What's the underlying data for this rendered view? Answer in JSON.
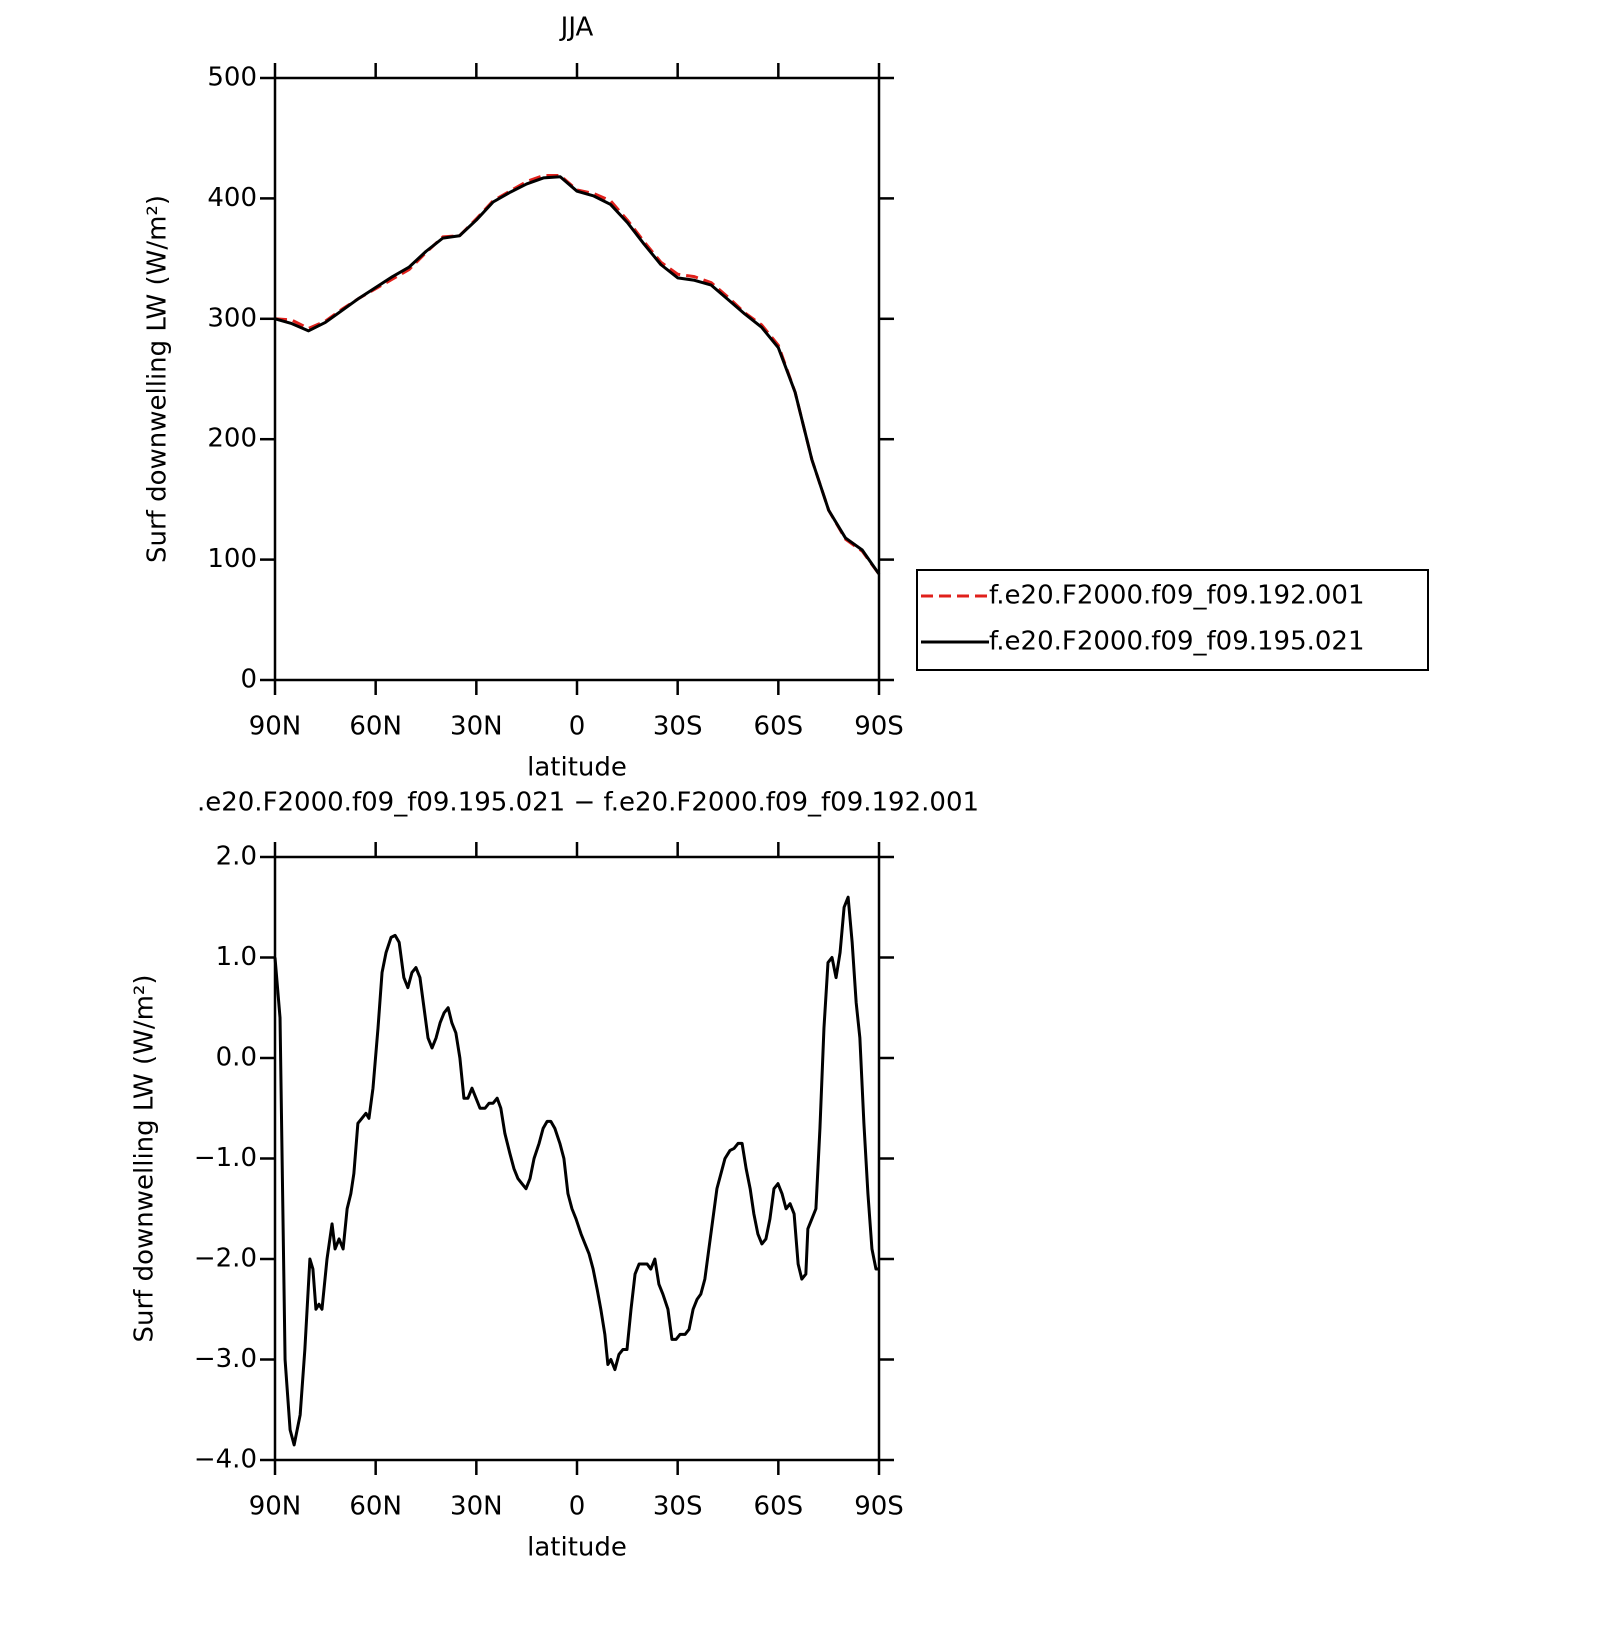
{
  "chart_data": [
    {
      "type": "line",
      "title": "JJA",
      "ylabel": "Surf downwelling LW (W/m²)",
      "xlabel": "latitude",
      "xlim": [
        90,
        -90
      ],
      "ylim": [
        0,
        500
      ],
      "xticks": [
        {
          "value": 90,
          "label": "90N"
        },
        {
          "value": 60,
          "label": "60N"
        },
        {
          "value": 30,
          "label": "30N"
        },
        0,
        {
          "value": -30,
          "label": "30S"
        },
        {
          "value": -60,
          "label": "60S"
        },
        {
          "value": -90,
          "label": "90S"
        }
      ],
      "yticks": [
        0,
        100,
        200,
        300,
        400,
        500
      ],
      "legend": "right",
      "x": [
        90,
        85,
        80,
        75,
        70,
        65,
        60,
        55,
        50,
        45,
        40,
        35,
        30,
        25,
        20,
        15,
        10,
        5,
        0,
        -5,
        -10,
        -15,
        -20,
        -25,
        -30,
        -35,
        -40,
        -45,
        -50,
        -55,
        -60,
        -65,
        -70,
        -75,
        -80,
        -85,
        -90
      ],
      "series": [
        {
          "name": "f.e20.F2000.f09_f09.192.001",
          "color": "#e0201b",
          "dash": true,
          "values": [
            300,
            299,
            292,
            298,
            308,
            317,
            325,
            333,
            341,
            355,
            368,
            369,
            383,
            398,
            406,
            414,
            419,
            419,
            407,
            404,
            398,
            382,
            364,
            347,
            337,
            335,
            330,
            318,
            305,
            295,
            278,
            239,
            183,
            141,
            117,
            107,
            88
          ]
        },
        {
          "name": "f.e20.F2000.f09_f09.195.021",
          "color": "#000000",
          "dash": false,
          "values": [
            300,
            296,
            290,
            297,
            307,
            317,
            326,
            335,
            343,
            356,
            367,
            369,
            382,
            397,
            405,
            412,
            417,
            418,
            406,
            402,
            395,
            380,
            362,
            345,
            334,
            332,
            328,
            316,
            304,
            293,
            276,
            239,
            183,
            141,
            118,
            108,
            88
          ]
        }
      ]
    },
    {
      "type": "line",
      "title": ".e20.F2000.f09_f09.195.021 − f.e20.F2000.f09_f09.192.001",
      "ylabel": "Surf downwelling LW (W/m²)",
      "xlabel": "latitude",
      "xlim": [
        90,
        -90
      ],
      "ylim": [
        -4,
        2
      ],
      "xticks": [
        {
          "value": 90,
          "label": "90N"
        },
        {
          "value": 60,
          "label": "60N"
        },
        {
          "value": 30,
          "label": "30N"
        },
        0,
        {
          "value": -30,
          "label": "30S"
        },
        {
          "value": -60,
          "label": "60S"
        },
        {
          "value": -90,
          "label": "90S"
        }
      ],
      "yticks": [
        {
          "value": -4,
          "label": "−4.0"
        },
        {
          "value": -3,
          "label": "−3.0"
        },
        {
          "value": -2,
          "label": "−2.0"
        },
        {
          "value": -1,
          "label": "−1.0"
        },
        {
          "value": 0,
          "label": "0.0"
        },
        {
          "value": 1,
          "label": "1.0"
        },
        {
          "value": 2,
          "label": "2.0"
        }
      ],
      "x": [
        90,
        88.5,
        87.0,
        85.5,
        84.3,
        82.5,
        81.1,
        79.6,
        78.7,
        77.8,
        76.9,
        76.0,
        74.5,
        73.0,
        72.1,
        70.9,
        69.7,
        68.5,
        67.4,
        66.5,
        65.3,
        64.1,
        62.9,
        62.0,
        60.8,
        59.3,
        58.1,
        56.9,
        55.4,
        54.2,
        53.0,
        51.6,
        50.4,
        49.2,
        48.0,
        46.8,
        45.6,
        44.4,
        43.2,
        42.0,
        40.8,
        39.6,
        38.4,
        37.3,
        36.1,
        34.9,
        33.7,
        32.5,
        31.3,
        30.1,
        28.9,
        27.4,
        26.2,
        25.0,
        23.8,
        22.7,
        21.5,
        20.0,
        18.8,
        17.6,
        16.4,
        15.2,
        14.0,
        12.8,
        11.3,
        10.1,
        8.9,
        7.8,
        6.6,
        5.1,
        3.9,
        2.7,
        1.5,
        0.3,
        -1.2,
        -2.4,
        -3.6,
        -4.8,
        -6.0,
        -7.1,
        -8.3,
        -9.2,
        -10.1,
        -11.3,
        -12.5,
        -13.7,
        -14.9,
        -16.1,
        -17.3,
        -18.5,
        -19.7,
        -20.9,
        -22.0,
        -23.2,
        -24.4,
        -25.6,
        -27.1,
        -28.3,
        -29.5,
        -30.7,
        -32.2,
        -33.4,
        -34.6,
        -35.8,
        -36.9,
        -38.1,
        -39.3,
        -40.5,
        -41.7,
        -42.9,
        -44.1,
        -45.6,
        -46.8,
        -48.0,
        -49.2,
        -50.4,
        -51.6,
        -52.7,
        -53.9,
        -55.1,
        -56.3,
        -57.5,
        -58.7,
        -59.9,
        -61.1,
        -62.3,
        -63.5,
        -64.7,
        -65.9,
        -67.0,
        -68.2,
        -68.8,
        -70.0,
        -71.2,
        -72.4,
        -73.6,
        -74.8,
        -76.0,
        -77.2,
        -78.4,
        -79.6,
        -80.8,
        -82.0,
        -83.2,
        -84.3,
        -85.5,
        -86.7,
        -87.9,
        -89.1,
        -90
      ],
      "series": [
        {
          "name": null,
          "color": "#000000",
          "dash": false,
          "values": [
            1.0,
            0.4,
            -3.0,
            -3.7,
            -3.85,
            -3.55,
            -2.9,
            -2.0,
            -2.1,
            -2.5,
            -2.45,
            -2.5,
            -2.0,
            -1.65,
            -1.9,
            -1.8,
            -1.9,
            -1.5,
            -1.35,
            -1.15,
            -0.65,
            -0.6,
            -0.55,
            -0.6,
            -0.3,
            0.3,
            0.85,
            1.05,
            1.2,
            1.22,
            1.15,
            0.8,
            0.7,
            0.85,
            0.9,
            0.8,
            0.5,
            0.2,
            0.1,
            0.2,
            0.35,
            0.45,
            0.5,
            0.35,
            0.25,
            0.0,
            -0.4,
            -0.4,
            -0.3,
            -0.4,
            -0.5,
            -0.5,
            -0.45,
            -0.45,
            -0.4,
            -0.5,
            -0.75,
            -0.95,
            -1.1,
            -1.2,
            -1.25,
            -1.3,
            -1.2,
            -1.0,
            -0.85,
            -0.7,
            -0.63,
            -0.63,
            -0.7,
            -0.85,
            -1.0,
            -1.35,
            -1.5,
            -1.6,
            -1.75,
            -1.85,
            -1.95,
            -2.1,
            -2.3,
            -2.5,
            -2.75,
            -3.05,
            -3.0,
            -3.1,
            -2.95,
            -2.9,
            -2.9,
            -2.5,
            -2.15,
            -2.05,
            -2.05,
            -2.05,
            -2.1,
            -2.0,
            -2.25,
            -2.35,
            -2.5,
            -2.8,
            -2.8,
            -2.75,
            -2.75,
            -2.7,
            -2.5,
            -2.4,
            -2.35,
            -2.2,
            -1.9,
            -1.6,
            -1.3,
            -1.15,
            -1.0,
            -0.92,
            -0.9,
            -0.85,
            -0.85,
            -1.1,
            -1.3,
            -1.55,
            -1.75,
            -1.85,
            -1.8,
            -1.6,
            -1.3,
            -1.25,
            -1.35,
            -1.5,
            -1.45,
            -1.55,
            -2.05,
            -2.2,
            -2.15,
            -1.7,
            -1.6,
            -1.5,
            -0.7,
            0.3,
            0.95,
            1.0,
            0.8,
            1.05,
            1.5,
            1.6,
            1.15,
            0.55,
            0.2,
            -0.65,
            -1.35,
            -1.9,
            -2.1,
            -2.1
          ]
        }
      ]
    }
  ]
}
